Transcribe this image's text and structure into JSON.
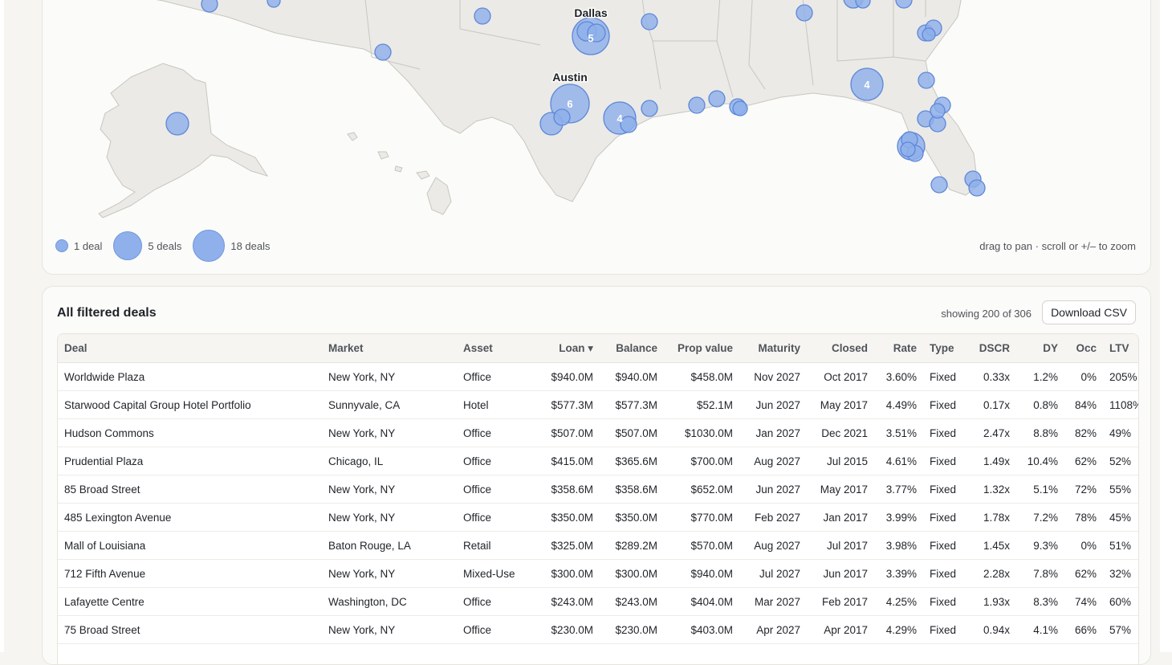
{
  "map": {
    "city_labels": {
      "dallas": "Dallas",
      "austin": "Austin"
    },
    "clusters": {
      "dallas": "5",
      "austin": "6",
      "houston": "4",
      "atlanta": "4"
    },
    "legend": {
      "one": "1 deal",
      "five": "5 deals",
      "eighteen": "18 deals"
    },
    "hint": "drag to pan · scroll or +/– to zoom",
    "colors": {
      "bubble_fill": "#8fb0ea",
      "bubble_stroke": "#5d87d9",
      "land": "#ebeae6",
      "border": "#c8c6c0"
    }
  },
  "table": {
    "title": "All filtered deals",
    "showing": "showing 200 of 306",
    "download_label": "Download CSV",
    "columns": [
      "Deal",
      "Market",
      "Asset",
      "Loan ▾",
      "Balance",
      "Prop value",
      "Maturity",
      "Closed",
      "Rate",
      "Type",
      "DSCR",
      "DY",
      "Occ",
      "LTV"
    ],
    "rows": [
      [
        "Worldwide Plaza",
        "New York, NY",
        "Office",
        "$940.0M",
        "$940.0M",
        "$458.0M",
        "Nov 2027",
        "Oct 2017",
        "3.60%",
        "Fixed",
        "0.33x",
        "1.2%",
        "0%",
        "205%"
      ],
      [
        "Starwood Capital Group Hotel Portfolio",
        "Sunnyvale, CA",
        "Hotel",
        "$577.3M",
        "$577.3M",
        "$52.1M",
        "Jun 2027",
        "May 2017",
        "4.49%",
        "Fixed",
        "0.17x",
        "0.8%",
        "84%",
        "1108%"
      ],
      [
        "Hudson Commons",
        "New York, NY",
        "Office",
        "$507.0M",
        "$507.0M",
        "$1030.0M",
        "Jan 2027",
        "Dec 2021",
        "3.51%",
        "Fixed",
        "2.47x",
        "8.8%",
        "82%",
        "49%"
      ],
      [
        "Prudential Plaza",
        "Chicago, IL",
        "Office",
        "$415.0M",
        "$365.6M",
        "$700.0M",
        "Aug 2027",
        "Jul 2015",
        "4.61%",
        "Fixed",
        "1.49x",
        "10.4%",
        "62%",
        "52%"
      ],
      [
        "85 Broad Street",
        "New York, NY",
        "Office",
        "$358.6M",
        "$358.6M",
        "$652.0M",
        "Jun 2027",
        "May 2017",
        "3.77%",
        "Fixed",
        "1.32x",
        "5.1%",
        "72%",
        "55%"
      ],
      [
        "485 Lexington Avenue",
        "New York, NY",
        "Office",
        "$350.0M",
        "$350.0M",
        "$770.0M",
        "Feb 2027",
        "Jan 2017",
        "3.99%",
        "Fixed",
        "1.78x",
        "7.2%",
        "78%",
        "45%"
      ],
      [
        "Mall of Louisiana",
        "Baton Rouge, LA",
        "Retail",
        "$325.0M",
        "$289.2M",
        "$570.0M",
        "Aug 2027",
        "Jul 2017",
        "3.98%",
        "Fixed",
        "1.45x",
        "9.3%",
        "0%",
        "51%"
      ],
      [
        "712 Fifth Avenue",
        "New York, NY",
        "Mixed-Use",
        "$300.0M",
        "$300.0M",
        "$940.0M",
        "Jul 2027",
        "Jun 2017",
        "3.39%",
        "Fixed",
        "2.28x",
        "7.8%",
        "62%",
        "32%"
      ],
      [
        "Lafayette Centre",
        "Washington, DC",
        "Office",
        "$243.0M",
        "$243.0M",
        "$404.0M",
        "Mar 2027",
        "Feb 2017",
        "4.25%",
        "Fixed",
        "1.93x",
        "8.3%",
        "74%",
        "60%"
      ],
      [
        "75 Broad Street",
        "New York, NY",
        "Office",
        "$230.0M",
        "$230.0M",
        "$403.0M",
        "Apr 2027",
        "Apr 2017",
        "4.29%",
        "Fixed",
        "0.94x",
        "4.1%",
        "66%",
        "57%"
      ],
      [
        "",
        "",
        "",
        "",
        "",
        "",
        "",
        "",
        "",
        "",
        "",
        "",
        "",
        ""
      ]
    ]
  }
}
